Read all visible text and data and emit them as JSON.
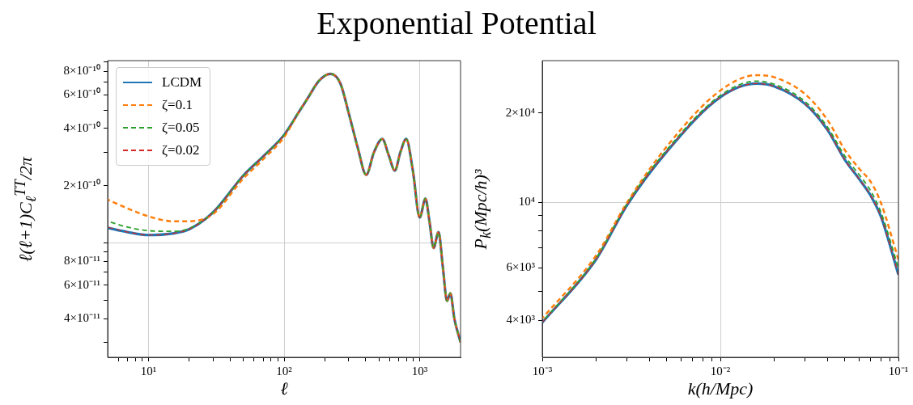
{
  "chart_data": [
    {
      "type": "line",
      "title": "Exponential Potential",
      "xlabel": "ℓ",
      "ylabel": "ℓ(ℓ+1)C$_{ℓ}$$^{TT}$/2π",
      "log": "xy",
      "grid": true,
      "legend": "top left",
      "xlim": [
        5,
        2000
      ],
      "ylim": [
        2.5e-11,
        9.1e-10
      ],
      "xticks": [
        {
          "value": 6,
          "label": null
        },
        {
          "value": 7,
          "label": null
        },
        {
          "value": 8,
          "label": null
        },
        {
          "value": 9,
          "label": null
        },
        {
          "value": 10,
          "label": "10¹"
        },
        {
          "value": 20,
          "label": null
        },
        {
          "value": 30,
          "label": null
        },
        {
          "value": 40,
          "label": null
        },
        {
          "value": 50,
          "label": null
        },
        {
          "value": 60,
          "label": null
        },
        {
          "value": 70,
          "label": null
        },
        {
          "value": 80,
          "label": null
        },
        {
          "value": 90,
          "label": null
        },
        {
          "value": 100,
          "label": "10²"
        },
        {
          "value": 200,
          "label": null
        },
        {
          "value": 300,
          "label": null
        },
        {
          "value": 400,
          "label": null
        },
        {
          "value": 500,
          "label": null
        },
        {
          "value": 600,
          "label": null
        },
        {
          "value": 700,
          "label": null
        },
        {
          "value": 800,
          "label": null
        },
        {
          "value": 900,
          "label": null
        },
        {
          "value": 1000,
          "label": "10³"
        }
      ],
      "yticks": [
        {
          "value": 3e-11,
          "label": null
        },
        {
          "value": 4e-11,
          "label": "4×10⁻¹¹"
        },
        {
          "value": 5e-11,
          "label": null
        },
        {
          "value": 6e-11,
          "label": "6×10⁻¹¹"
        },
        {
          "value": 7e-11,
          "label": null
        },
        {
          "value": 8e-11,
          "label": "8×10⁻¹¹"
        },
        {
          "value": 9e-11,
          "label": null
        },
        {
          "value": 1e-10,
          "label": null
        },
        {
          "value": 2e-10,
          "label": "2×10⁻¹⁰"
        },
        {
          "value": 3e-10,
          "label": null
        },
        {
          "value": 4e-10,
          "label": "4×10⁻¹⁰"
        },
        {
          "value": 5e-10,
          "label": null
        },
        {
          "value": 6e-10,
          "label": "6×10⁻¹⁰"
        },
        {
          "value": 7e-10,
          "label": null
        },
        {
          "value": 8e-10,
          "label": "8×10⁻¹⁰"
        },
        {
          "value": 9e-10,
          "label": null
        }
      ],
      "x": [
        5,
        7,
        10,
        15,
        20,
        30,
        50,
        70,
        100,
        130,
        150,
        180,
        220,
        260,
        300,
        350,
        403,
        460,
        530,
        590,
        656,
        720,
        795,
        890,
        1000,
        1102,
        1180,
        1265,
        1376,
        1480,
        1589,
        1683,
        1800,
        2000
      ],
      "series": [
        {
          "name": "LCDM",
          "color": "#1f77b4",
          "line_style": "solid",
          "values": [
            1.2e-10,
            1.14e-10,
            1.1e-10,
            1.12e-10,
            1.18e-10,
            1.45e-10,
            2.26e-10,
            2.85e-10,
            3.7e-10,
            4.95e-10,
            5.8e-10,
            7.1e-10,
            7.75e-10,
            6.9e-10,
            4.8e-10,
            3.15e-10,
            2.28e-10,
            3e-10,
            3.52e-10,
            2.9e-10,
            2.4e-10,
            3e-10,
            3.52e-10,
            2.4e-10,
            1.36e-10,
            1.71e-10,
            1.3e-10,
            9.4e-11,
            1.14e-10,
            7.5e-11,
            4.95e-11,
            5.43e-11,
            4e-11,
            3e-11
          ]
        },
        {
          "name": "ζ=0.1",
          "color": "#ff7f0e",
          "line_style": "dashed",
          "values": [
            1.69e-10,
            1.52e-10,
            1.38e-10,
            1.3e-10,
            1.3e-10,
            1.42e-10,
            2.18e-10,
            2.75e-10,
            3.6e-10,
            4.95e-10,
            5.8e-10,
            7.1e-10,
            7.75e-10,
            6.9e-10,
            4.8e-10,
            3.15e-10,
            2.28e-10,
            3e-10,
            3.52e-10,
            2.9e-10,
            2.4e-10,
            3e-10,
            3.52e-10,
            2.4e-10,
            1.36e-10,
            1.71e-10,
            1.3e-10,
            9.4e-11,
            1.14e-10,
            7.5e-11,
            4.95e-11,
            5.43e-11,
            4e-11,
            3e-11
          ]
        },
        {
          "name": "ζ=0.05",
          "color": "#2ca02c",
          "line_style": "dashed",
          "values": [
            1.3e-10,
            1.21e-10,
            1.16e-10,
            1.15e-10,
            1.19e-10,
            1.45e-10,
            2.26e-10,
            2.85e-10,
            3.7e-10,
            4.95e-10,
            5.8e-10,
            7.1e-10,
            7.75e-10,
            6.9e-10,
            4.8e-10,
            3.15e-10,
            2.28e-10,
            3e-10,
            3.52e-10,
            2.9e-10,
            2.4e-10,
            3e-10,
            3.52e-10,
            2.4e-10,
            1.36e-10,
            1.71e-10,
            1.3e-10,
            9.4e-11,
            1.14e-10,
            7.5e-11,
            4.95e-11,
            5.43e-11,
            4e-11,
            3e-11
          ]
        },
        {
          "name": "ζ=0.02",
          "color": "#d62728",
          "line_style": "dashed",
          "values": [
            1.21e-10,
            1.14e-10,
            1.1e-10,
            1.12e-10,
            1.18e-10,
            1.45e-10,
            2.26e-10,
            2.85e-10,
            3.7e-10,
            4.95e-10,
            5.8e-10,
            7.1e-10,
            7.75e-10,
            6.9e-10,
            4.8e-10,
            3.15e-10,
            2.28e-10,
            3e-10,
            3.52e-10,
            2.9e-10,
            2.4e-10,
            3e-10,
            3.52e-10,
            2.4e-10,
            1.36e-10,
            1.71e-10,
            1.3e-10,
            9.4e-11,
            1.14e-10,
            7.5e-11,
            4.95e-11,
            5.43e-11,
            4e-11,
            3e-11
          ]
        }
      ]
    },
    {
      "type": "line",
      "xlabel": "k(h/Mpc)",
      "ylabel": "P$_{k}$(Mpc/h)³",
      "log": "xy",
      "grid": true,
      "xlim": [
        0.001,
        0.1
      ],
      "ylim": [
        3000,
        30000
      ],
      "xticks": [
        {
          "value": 0.001,
          "label": "10⁻³"
        },
        {
          "value": 0.002,
          "label": null
        },
        {
          "value": 0.003,
          "label": null
        },
        {
          "value": 0.004,
          "label": null
        },
        {
          "value": 0.005,
          "label": null
        },
        {
          "value": 0.006,
          "label": null
        },
        {
          "value": 0.007,
          "label": null
        },
        {
          "value": 0.008,
          "label": null
        },
        {
          "value": 0.009,
          "label": null
        },
        {
          "value": 0.01,
          "label": "10⁻²"
        },
        {
          "value": 0.02,
          "label": null
        },
        {
          "value": 0.03,
          "label": null
        },
        {
          "value": 0.04,
          "label": null
        },
        {
          "value": 0.05,
          "label": null
        },
        {
          "value": 0.06,
          "label": null
        },
        {
          "value": 0.07,
          "label": null
        },
        {
          "value": 0.08,
          "label": null
        },
        {
          "value": 0.09,
          "label": null
        },
        {
          "value": 0.1,
          "label": "10⁻¹"
        }
      ],
      "yticks": [
        {
          "value": 4000,
          "label": "4×10³"
        },
        {
          "value": 5000,
          "label": null
        },
        {
          "value": 6000,
          "label": "6×10³"
        },
        {
          "value": 7000,
          "label": null
        },
        {
          "value": 8000,
          "label": null
        },
        {
          "value": 9000,
          "label": null
        },
        {
          "value": 10000,
          "label": "10⁴"
        },
        {
          "value": 20000,
          "label": "2×10⁴"
        }
      ],
      "x": [
        0.001,
        0.002,
        0.003,
        0.005,
        0.01,
        0.016,
        0.02,
        0.03,
        0.04,
        0.05,
        0.06,
        0.07,
        0.08,
        0.1
      ],
      "series": [
        {
          "color": "#1f77b4",
          "line_style": "solid",
          "values": [
            3930,
            6400,
            9800,
            14800,
            22600,
            25100,
            24600,
            21400,
            17500,
            13900,
            12000,
            10500,
            8900,
            5700
          ]
        },
        {
          "color": "#ff7f0e",
          "line_style": "dashed",
          "values": [
            4060,
            6600,
            10000,
            15400,
            23800,
            26800,
            26400,
            23100,
            18900,
            15000,
            13000,
            11700,
            9900,
            6400
          ]
        },
        {
          "color": "#2ca02c",
          "line_style": "dashed",
          "values": [
            3950,
            6450,
            9900,
            15000,
            22900,
            25600,
            25000,
            21800,
            17900,
            14300,
            12400,
            10900,
            9200,
            6000
          ]
        },
        {
          "color": "#d62728",
          "line_style": "dashed",
          "values": [
            3930,
            6400,
            9800,
            14800,
            22600,
            25100,
            24600,
            21400,
            17500,
            13900,
            12000,
            10500,
            8900,
            5700
          ]
        }
      ]
    }
  ]
}
